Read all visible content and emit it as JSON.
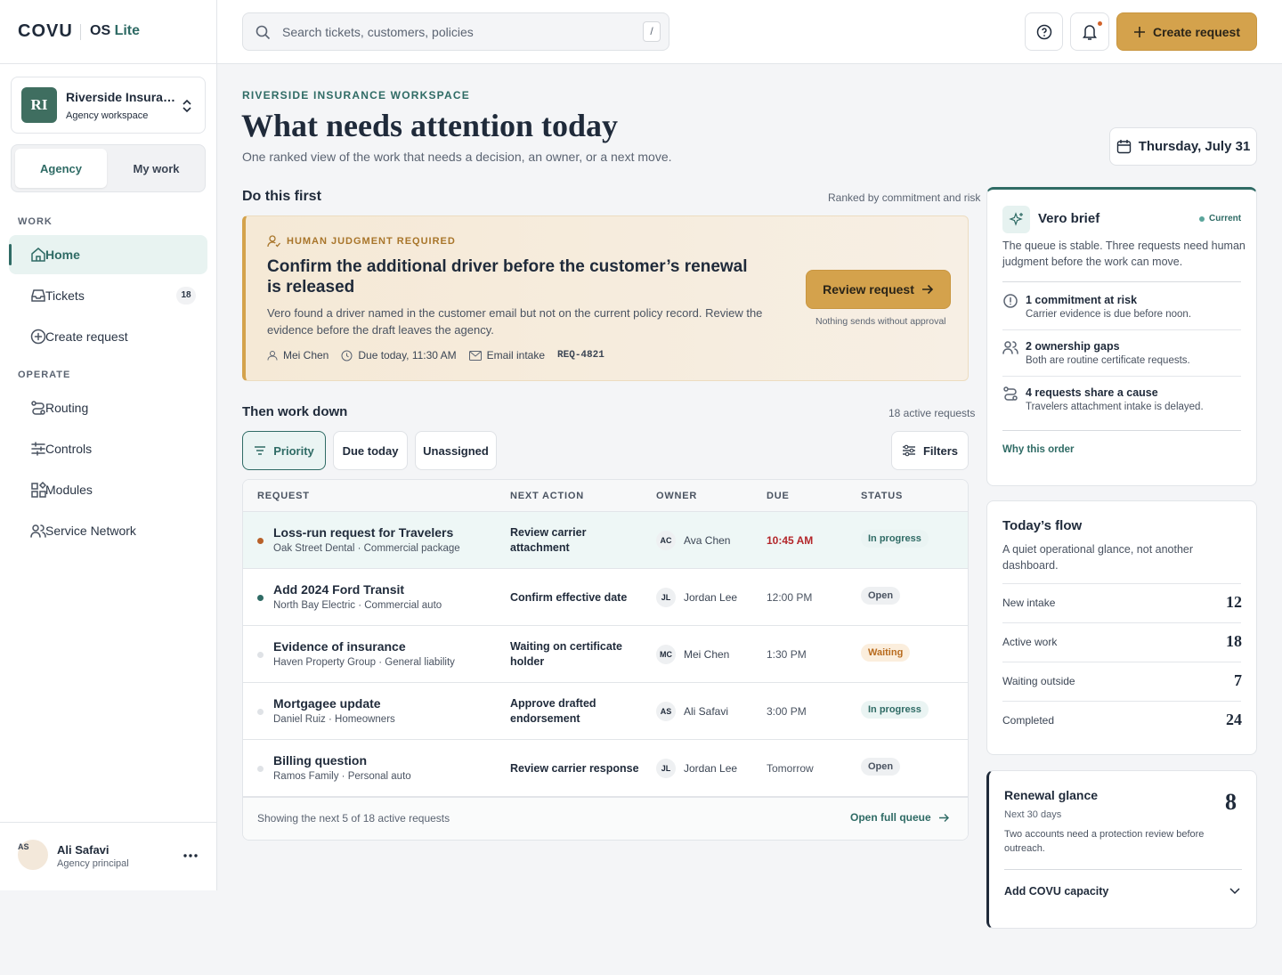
{
  "sidebar": {
    "logo": "COVU",
    "product": "OS",
    "product_suffix": "Lite",
    "workspace": {
      "initials": "RI",
      "name": "Riverside Insura…",
      "type": "Agency workspace"
    },
    "tabs": [
      "Agency",
      "My work"
    ],
    "work_label": "WORK",
    "work_items": [
      "Home",
      "Tickets",
      "Create request"
    ],
    "tickets_count": 18,
    "operate_label": "OPERATE",
    "operate_items": [
      "Routing",
      "Controls",
      "Modules",
      "Service Network"
    ],
    "user": {
      "initials": "AS",
      "name": "Ali Safavi",
      "role": "Agency principal"
    }
  },
  "topbar": {
    "search": "Search tickets, customers, policies",
    "shortcut": "/",
    "create": "Create request"
  },
  "header": {
    "eyebrow": "RIVERSIDE INSURANCE WORKSPACE",
    "title": "What needs attention today",
    "subtitle": "One ranked view of the work that needs a decision, an owner, or a next move.",
    "date": "Thursday, July 31"
  },
  "first": {
    "heading": "Do this first",
    "ranking": "Ranked by commitment and risk",
    "tag": "HUMAN JUDGMENT REQUIRED",
    "title": "Confirm the additional driver before the customer’s renewal is released",
    "body": "Vero found a driver named in the customer email but not on the current policy record. Review the evidence before the draft leaves the agency.",
    "owner": "Mei Chen",
    "due": "Due today, 11:30 AM",
    "source": "Email intake",
    "id": "REQ-4821",
    "action": "Review request",
    "note": "Nothing sends without approval"
  },
  "queue": {
    "heading": "Then work down",
    "count": "18 active requests",
    "chips": [
      "Priority",
      "Due today",
      "Unassigned"
    ],
    "filters": "Filters",
    "columns": [
      "REQUEST",
      "NEXT ACTION",
      "OWNER",
      "DUE",
      "STATUS"
    ],
    "rows": [
      {
        "title": "Loss-run request for Travelers",
        "sub": "Oak Street Dental · Commercial package",
        "action": "Review carrier attachment",
        "initials": "AC",
        "owner": "Ava Chen",
        "due": "10:45 AM",
        "status": "In progress"
      },
      {
        "title": "Add 2024 Ford Transit",
        "sub": "North Bay Electric · Commercial auto",
        "action": "Confirm effective date",
        "initials": "JL",
        "owner": "Jordan Lee",
        "due": "12:00 PM",
        "status": "Open"
      },
      {
        "title": "Evidence of insurance",
        "sub": "Haven Property Group · General liability",
        "action": "Waiting on certificate holder",
        "initials": "MC",
        "owner": "Mei Chen",
        "due": "1:30 PM",
        "status": "Waiting"
      },
      {
        "title": "Mortgagee update",
        "sub": "Daniel Ruiz · Homeowners",
        "action": "Approve drafted endorsement",
        "initials": "AS",
        "owner": "Ali Safavi",
        "due": "3:00 PM",
        "status": "In progress"
      },
      {
        "title": "Billing question",
        "sub": "Ramos Family · Personal auto",
        "action": "Review carrier response",
        "initials": "JL",
        "owner": "Jordan Lee",
        "due": "Tomorrow",
        "status": "Open"
      }
    ],
    "footer": "Showing the next 5 of 18 active requests",
    "open": "Open full queue"
  },
  "brief": {
    "title": "Vero brief",
    "state": "Current",
    "summary": "The queue is stable. Three requests need human judgment before the work can move.",
    "items": [
      {
        "title": "1 commitment at risk",
        "detail": "Carrier evidence is due before noon."
      },
      {
        "title": "2 ownership gaps",
        "detail": "Both are routine certificate requests."
      },
      {
        "title": "4 requests share a cause",
        "detail": "Travelers attachment intake is delayed."
      }
    ],
    "link": "Why this order"
  },
  "flow": {
    "title": "Today’s flow",
    "summary": "A quiet operational glance, not another dashboard.",
    "rows": [
      {
        "label": "New intake",
        "value": 12
      },
      {
        "label": "Active work",
        "value": 18
      },
      {
        "label": "Waiting outside",
        "value": 7
      },
      {
        "label": "Completed",
        "value": 24
      }
    ]
  },
  "renewal": {
    "title": "Renewal glance",
    "count": 8,
    "window": "Next 30 days",
    "summary": "Two accounts need a protection review before outreach.",
    "action": "Add COVU capacity"
  }
}
